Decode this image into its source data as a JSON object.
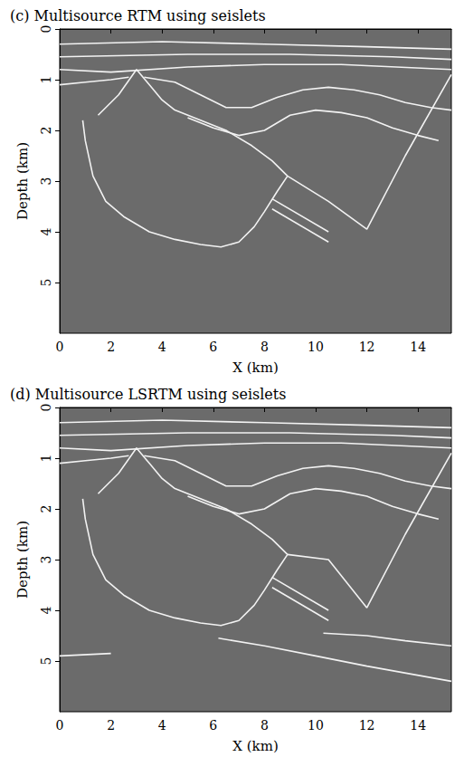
{
  "chart_data": [
    {
      "type": "line",
      "title": "(c) Multisource RTM using seislets",
      "x_label": "X (km)",
      "y_label": "Depth (km)",
      "xlim": [
        0,
        15.3
      ],
      "ylim": [
        0,
        6
      ],
      "xticks": [
        0,
        2,
        4,
        6,
        8,
        10,
        12,
        14
      ],
      "yticks": [
        0,
        1,
        2,
        3,
        4,
        5
      ],
      "grid": false,
      "color": "#f2f2f2",
      "series": [
        {
          "values": [
            [
              0,
              0.3
            ],
            [
              4,
              0.25
            ],
            [
              8,
              0.3
            ],
            [
              12,
              0.35
            ],
            [
              15.3,
              0.4
            ]
          ]
        },
        {
          "values": [
            [
              0,
              0.55
            ],
            [
              5,
              0.5
            ],
            [
              9,
              0.5
            ],
            [
              13,
              0.55
            ],
            [
              15.3,
              0.6
            ]
          ]
        },
        {
          "values": [
            [
              0,
              0.8
            ],
            [
              2,
              0.85
            ],
            [
              5,
              0.75
            ],
            [
              8,
              0.7
            ],
            [
              11,
              0.7
            ],
            [
              15.3,
              0.8
            ]
          ]
        },
        {
          "values": [
            [
              0,
              1.1
            ],
            [
              1,
              1.05
            ],
            [
              2,
              1.0
            ],
            [
              2.7,
              0.95
            ]
          ]
        },
        {
          "values": [
            [
              3.3,
              0.95
            ],
            [
              4.5,
              1.05
            ],
            [
              5.5,
              1.3
            ],
            [
              6.5,
              1.55
            ],
            [
              7.5,
              1.55
            ],
            [
              8.5,
              1.35
            ],
            [
              9.5,
              1.2
            ],
            [
              10.5,
              1.15
            ],
            [
              11.5,
              1.2
            ],
            [
              12.5,
              1.3
            ],
            [
              13.5,
              1.45
            ],
            [
              14.5,
              1.55
            ],
            [
              15.3,
              1.6
            ]
          ]
        },
        {
          "values": [
            [
              5,
              1.75
            ],
            [
              6,
              1.95
            ],
            [
              7,
              2.1
            ],
            [
              8,
              2.0
            ],
            [
              9,
              1.7
            ],
            [
              10,
              1.6
            ],
            [
              11,
              1.65
            ],
            [
              12,
              1.75
            ],
            [
              13,
              1.95
            ],
            [
              14,
              2.1
            ],
            [
              14.8,
              2.2
            ]
          ]
        },
        {
          "values": [
            [
              1.5,
              1.7
            ],
            [
              2.3,
              1.3
            ],
            [
              3,
              0.8
            ],
            [
              3.5,
              1.1
            ],
            [
              4,
              1.4
            ],
            [
              4.5,
              1.6
            ],
            [
              5.5,
              1.8
            ],
            [
              6.5,
              2.0
            ],
            [
              7.5,
              2.3
            ],
            [
              8.3,
              2.6
            ],
            [
              8.9,
              2.9
            ]
          ]
        },
        {
          "values": [
            [
              0.9,
              1.8
            ],
            [
              1,
              2.2
            ],
            [
              1.3,
              2.9
            ],
            [
              1.8,
              3.4
            ],
            [
              2.5,
              3.7
            ],
            [
              3.5,
              4.0
            ],
            [
              4.5,
              4.15
            ],
            [
              5.5,
              4.25
            ],
            [
              6.3,
              4.3
            ],
            [
              7,
              4.2
            ],
            [
              7.6,
              3.9
            ],
            [
              8,
              3.6
            ],
            [
              8.5,
              3.2
            ],
            [
              8.9,
              2.9
            ]
          ]
        },
        {
          "values": [
            [
              8.9,
              2.9
            ],
            [
              10.5,
              3.4
            ],
            [
              12,
              3.95
            ],
            [
              13.5,
              2.5
            ],
            [
              15.3,
              0.9
            ]
          ]
        },
        {
          "values": [
            [
              8.3,
              3.35
            ],
            [
              10.5,
              4.0
            ]
          ]
        },
        {
          "values": [
            [
              8.3,
              3.55
            ],
            [
              10.5,
              4.2
            ]
          ]
        }
      ]
    },
    {
      "type": "line",
      "title": "(d) Multisource LSRTM using seislets",
      "x_label": "X (km)",
      "y_label": "Depth (km)",
      "xlim": [
        0,
        15.3
      ],
      "ylim": [
        0,
        6
      ],
      "xticks": [
        0,
        2,
        4,
        6,
        8,
        10,
        12,
        14
      ],
      "yticks": [
        0,
        1,
        2,
        3,
        4,
        5
      ],
      "grid": false,
      "color": "#f2f2f2",
      "series": [
        {
          "values": [
            [
              0,
              0.3
            ],
            [
              4,
              0.25
            ],
            [
              8,
              0.3
            ],
            [
              12,
              0.35
            ],
            [
              15.3,
              0.4
            ]
          ]
        },
        {
          "values": [
            [
              0,
              0.55
            ],
            [
              5,
              0.5
            ],
            [
              9,
              0.5
            ],
            [
              13,
              0.55
            ],
            [
              15.3,
              0.6
            ]
          ]
        },
        {
          "values": [
            [
              0,
              0.8
            ],
            [
              2,
              0.85
            ],
            [
              5,
              0.75
            ],
            [
              8,
              0.7
            ],
            [
              11,
              0.7
            ],
            [
              15.3,
              0.8
            ]
          ]
        },
        {
          "values": [
            [
              0,
              1.1
            ],
            [
              1,
              1.05
            ],
            [
              2,
              1.0
            ],
            [
              2.7,
              0.95
            ]
          ]
        },
        {
          "values": [
            [
              3.3,
              0.95
            ],
            [
              4.5,
              1.05
            ],
            [
              5.5,
              1.3
            ],
            [
              6.5,
              1.55
            ],
            [
              7.5,
              1.55
            ],
            [
              8.5,
              1.35
            ],
            [
              9.5,
              1.2
            ],
            [
              10.5,
              1.15
            ],
            [
              11.5,
              1.2
            ],
            [
              12.5,
              1.3
            ],
            [
              13.5,
              1.45
            ],
            [
              14.5,
              1.55
            ],
            [
              15.3,
              1.6
            ]
          ]
        },
        {
          "values": [
            [
              5,
              1.75
            ],
            [
              6,
              1.95
            ],
            [
              7,
              2.1
            ],
            [
              8,
              2.0
            ],
            [
              9,
              1.7
            ],
            [
              10,
              1.6
            ],
            [
              11,
              1.65
            ],
            [
              12,
              1.75
            ],
            [
              13,
              1.95
            ],
            [
              14,
              2.1
            ],
            [
              14.8,
              2.2
            ]
          ]
        },
        {
          "values": [
            [
              1.5,
              1.7
            ],
            [
              2.3,
              1.3
            ],
            [
              3,
              0.8
            ],
            [
              3.5,
              1.1
            ],
            [
              4,
              1.4
            ],
            [
              4.5,
              1.6
            ],
            [
              5.5,
              1.8
            ],
            [
              6.5,
              2.0
            ],
            [
              7.5,
              2.3
            ],
            [
              8.3,
              2.6
            ],
            [
              8.9,
              2.9
            ]
          ]
        },
        {
          "values": [
            [
              0.9,
              1.8
            ],
            [
              1,
              2.2
            ],
            [
              1.3,
              2.9
            ],
            [
              1.8,
              3.4
            ],
            [
              2.5,
              3.7
            ],
            [
              3.5,
              4.0
            ],
            [
              4.5,
              4.15
            ],
            [
              5.5,
              4.25
            ],
            [
              6.3,
              4.3
            ],
            [
              7,
              4.2
            ],
            [
              7.6,
              3.9
            ],
            [
              8,
              3.6
            ],
            [
              8.5,
              3.2
            ],
            [
              8.9,
              2.9
            ]
          ]
        },
        {
          "values": [
            [
              8.9,
              2.9
            ],
            [
              10.5,
              3.0
            ],
            [
              12,
              3.95
            ],
            [
              13.5,
              2.5
            ],
            [
              15.3,
              0.9
            ]
          ]
        },
        {
          "values": [
            [
              8.3,
              3.35
            ],
            [
              10.5,
              4.0
            ]
          ]
        },
        {
          "values": [
            [
              8.3,
              3.55
            ],
            [
              10.5,
              4.2
            ]
          ]
        },
        {
          "values": [
            [
              10.3,
              4.45
            ],
            [
              12,
              4.5
            ],
            [
              13.5,
              4.6
            ],
            [
              15.3,
              4.7
            ]
          ]
        },
        {
          "values": [
            [
              0,
              4.9
            ],
            [
              2,
              4.85
            ]
          ]
        },
        {
          "values": [
            [
              6.2,
              4.55
            ],
            [
              8,
              4.7
            ],
            [
              10,
              4.9
            ],
            [
              12,
              5.1
            ],
            [
              15.3,
              5.4
            ]
          ]
        }
      ]
    }
  ]
}
